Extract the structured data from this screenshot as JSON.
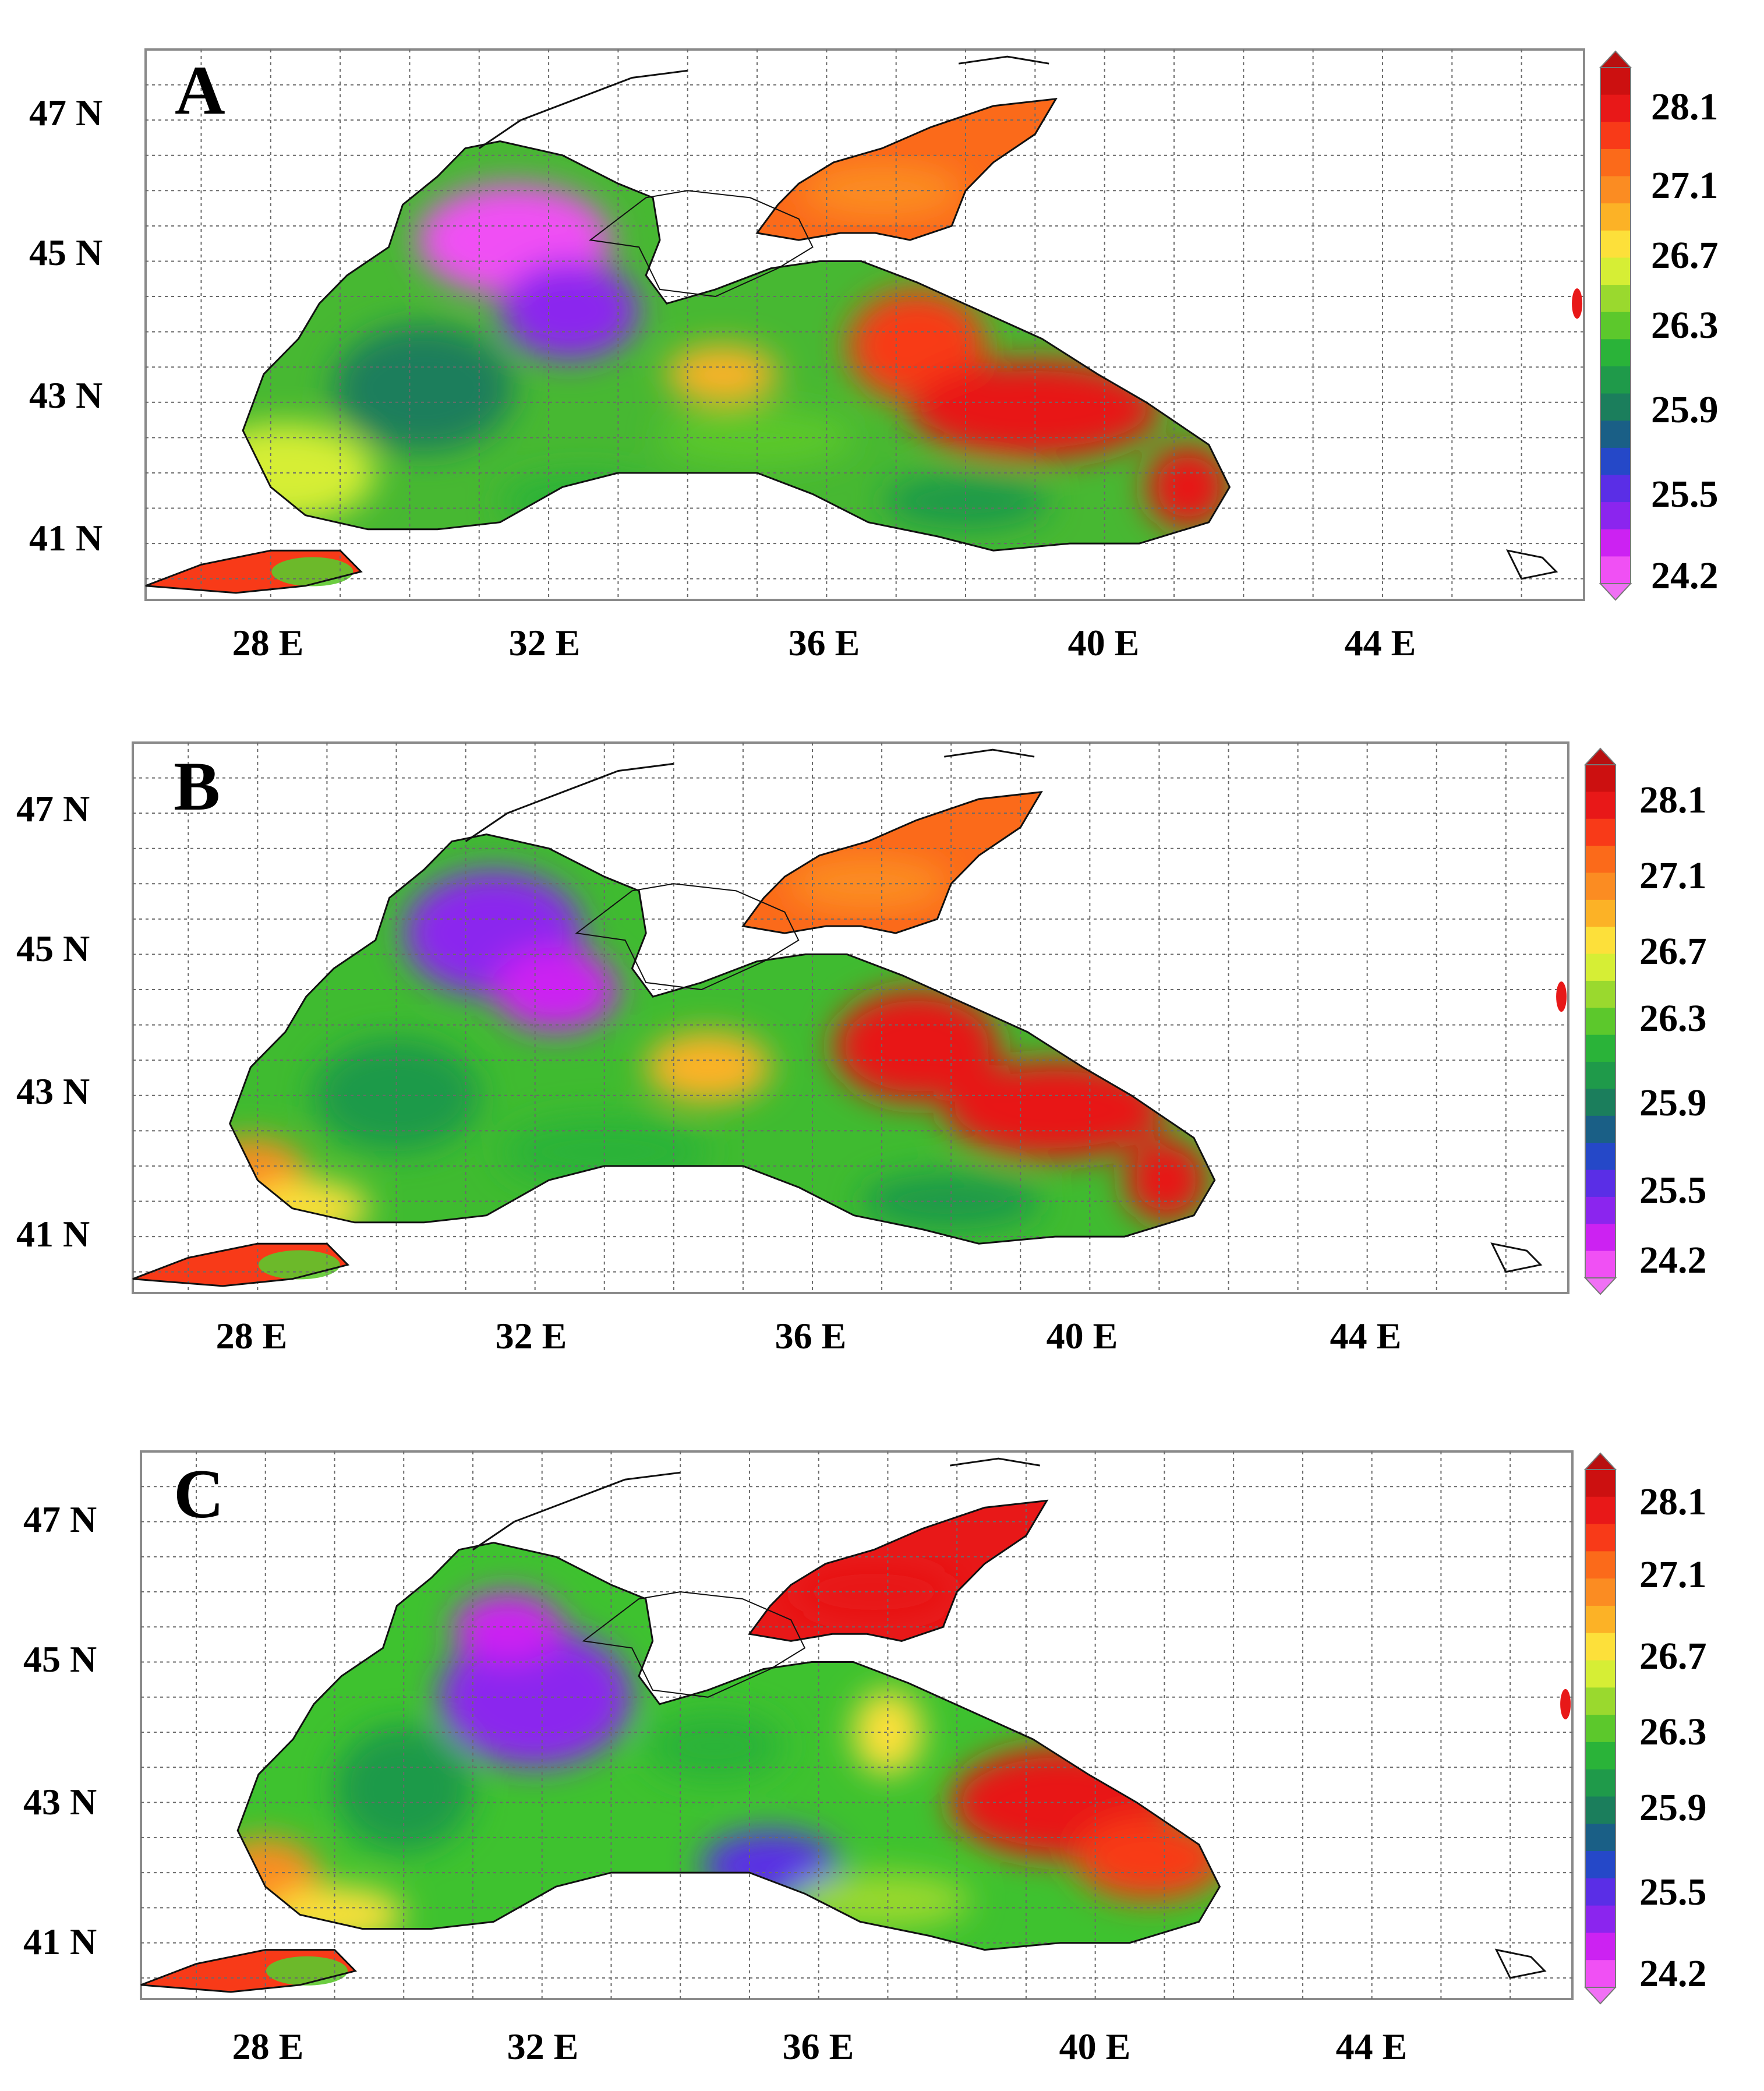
{
  "figure": {
    "panels": [
      {
        "label": "A",
        "variant": 0
      },
      {
        "label": "B",
        "variant": 1
      },
      {
        "label": "C",
        "variant": 2
      }
    ],
    "lon_ticks": [
      "28 E",
      "32 E",
      "36 E",
      "40 E",
      "44 E"
    ],
    "lat_ticks": [
      "47 N",
      "45 N",
      "43 N",
      "41 N"
    ],
    "map_extent": {
      "lon_min": 26.2,
      "lon_max": 46.9,
      "lat_min": 40.2,
      "lat_max": 48.0
    },
    "colorbar": {
      "labels": [
        "28.1",
        "27.1",
        "26.7",
        "26.3",
        "25.9",
        "25.5",
        "24.2"
      ],
      "colors_top_to_bottom": [
        "#cc1010",
        "#e81818",
        "#f83a18",
        "#fb6a1a",
        "#fb8c22",
        "#fcb226",
        "#fde03a",
        "#d6ee35",
        "#9ad92e",
        "#5cc82c",
        "#2ab339",
        "#1f9a4a",
        "#1b7e5c",
        "#1a5f86",
        "#2548c8",
        "#5a2ee6",
        "#8b25ee",
        "#cc22f2",
        "#f050f4"
      ],
      "over_color": "#b81010",
      "under_color": "#f070f4"
    }
  }
}
